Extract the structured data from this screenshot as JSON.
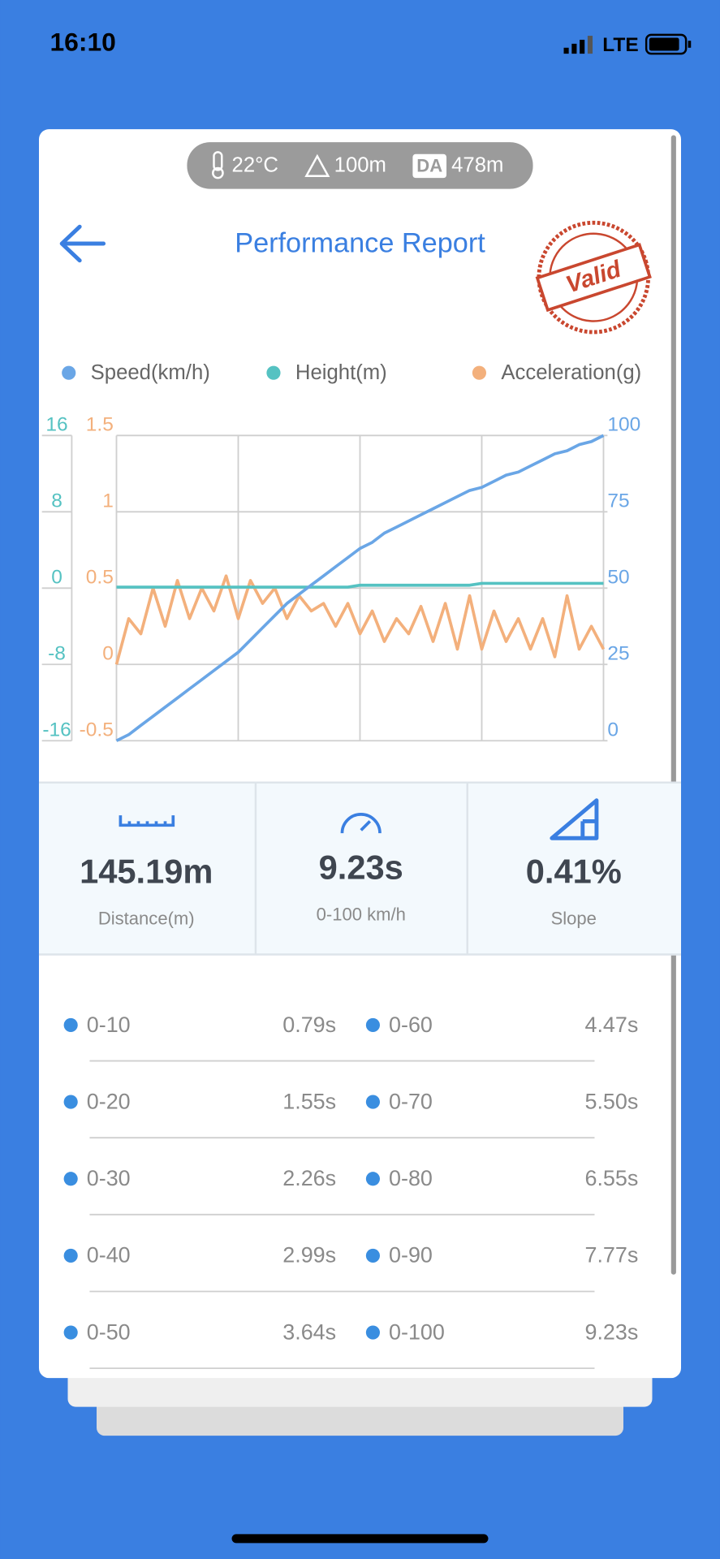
{
  "status_bar": {
    "time": "16:10",
    "network": "LTE"
  },
  "conditions": {
    "temperature": "22°C",
    "altitude": "100m",
    "da_label": "DA",
    "density_altitude": "478m"
  },
  "header": {
    "title": "Performance Report",
    "stamp": "Valid"
  },
  "chart_data": {
    "type": "line",
    "series": [
      {
        "name": "Speed(km/h)",
        "color": "#6aa6e6",
        "axis": "y2",
        "values": [
          0,
          2,
          5,
          8,
          11,
          14,
          17,
          20,
          23,
          26,
          29,
          33,
          37,
          41,
          45,
          48,
          51,
          54,
          57,
          60,
          63,
          65,
          68,
          70,
          72,
          74,
          76,
          78,
          80,
          82,
          83,
          85,
          87,
          88,
          90,
          92,
          94,
          95,
          97,
          98,
          100
        ]
      },
      {
        "name": "Height(m)",
        "color": "#55c2c2",
        "axis": "y3",
        "values": [
          0.1,
          0.1,
          0.1,
          0.1,
          0.1,
          0.1,
          0.1,
          0.1,
          0.1,
          0.1,
          0.1,
          0.1,
          0.1,
          0.1,
          0.1,
          0.1,
          0.1,
          0.1,
          0.1,
          0.1,
          0.3,
          0.3,
          0.3,
          0.3,
          0.3,
          0.3,
          0.3,
          0.3,
          0.3,
          0.3,
          0.5,
          0.5,
          0.5,
          0.5,
          0.5,
          0.5,
          0.5,
          0.5,
          0.5,
          0.5,
          0.5
        ]
      },
      {
        "name": "Acceleration(g)",
        "color": "#f3b07c",
        "values": [
          0.0,
          0.3,
          0.2,
          0.5,
          0.25,
          0.55,
          0.3,
          0.5,
          0.35,
          0.58,
          0.3,
          0.55,
          0.4,
          0.5,
          0.3,
          0.45,
          0.35,
          0.4,
          0.25,
          0.4,
          0.2,
          0.35,
          0.15,
          0.3,
          0.2,
          0.38,
          0.15,
          0.4,
          0.1,
          0.45,
          0.1,
          0.35,
          0.15,
          0.3,
          0.1,
          0.3,
          0.05,
          0.45,
          0.1,
          0.25,
          0.1
        ]
      }
    ],
    "ylim": [
      -0.5,
      1.5
    ],
    "yticks": [
      -0.5,
      0,
      0.5,
      1,
      1.5
    ],
    "y2lim": [
      0,
      100
    ],
    "y2ticks": [
      0,
      25,
      50,
      75,
      100
    ],
    "y3lim": [
      -16,
      16
    ],
    "y3ticks": [
      -16,
      -8,
      0,
      8,
      16
    ],
    "grid": true
  },
  "summary": [
    {
      "value": "145.19m",
      "label": "Distance(m)"
    },
    {
      "value": "9.23s",
      "label": "0-100 km/h"
    },
    {
      "value": "0.41%",
      "label": "Slope"
    }
  ],
  "splits": [
    {
      "range": "0-10",
      "time": "0.79s"
    },
    {
      "range": "0-20",
      "time": "1.55s"
    },
    {
      "range": "0-30",
      "time": "2.26s"
    },
    {
      "range": "0-40",
      "time": "2.99s"
    },
    {
      "range": "0-50",
      "time": "3.64s"
    },
    {
      "range": "0-60",
      "time": "4.47s"
    },
    {
      "range": "0-70",
      "time": "5.50s"
    },
    {
      "range": "0-80",
      "time": "6.55s"
    },
    {
      "range": "0-90",
      "time": "7.77s"
    },
    {
      "range": "0-100",
      "time": "9.23s"
    }
  ]
}
